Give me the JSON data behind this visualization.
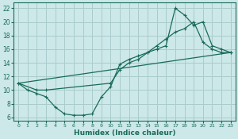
{
  "xlabel": "Humidex (Indice chaleur)",
  "bg_color": "#cce8e8",
  "grid_color": "#aacccc",
  "line_color": "#1a6b5a",
  "xlim": [
    -0.5,
    23.5
  ],
  "ylim": [
    5.5,
    22.8
  ],
  "xticks": [
    0,
    1,
    2,
    3,
    4,
    5,
    6,
    7,
    8,
    9,
    10,
    11,
    12,
    13,
    14,
    15,
    16,
    17,
    18,
    19,
    20,
    21,
    22,
    23
  ],
  "yticks": [
    6,
    8,
    10,
    12,
    14,
    16,
    18,
    20,
    22
  ],
  "series1_x": [
    0,
    1,
    2,
    3,
    4,
    5,
    6,
    7,
    8,
    9,
    10,
    11,
    12,
    13,
    14,
    15,
    16,
    17,
    18,
    19,
    20,
    21,
    22,
    23
  ],
  "series1_y": [
    11.0,
    10.0,
    9.5,
    9.0,
    7.5,
    6.5,
    6.3,
    6.3,
    6.5,
    9.0,
    10.5,
    13.8,
    14.5,
    15.0,
    15.5,
    16.5,
    17.5,
    18.5,
    19.0,
    20.0,
    17.0,
    16.0,
    15.5,
    15.5
  ],
  "series2_x": [
    0,
    2,
    3,
    10,
    11,
    12,
    13,
    14,
    15,
    16,
    17,
    18,
    19,
    20,
    21,
    22,
    23
  ],
  "series2_y": [
    11.0,
    10.0,
    10.0,
    11.0,
    13.0,
    14.0,
    14.5,
    15.5,
    16.0,
    16.5,
    22.0,
    21.0,
    19.5,
    20.0,
    16.5,
    16.0,
    15.5
  ],
  "series3_x": [
    0,
    23
  ],
  "series3_y": [
    11.0,
    15.5
  ],
  "tick_fontsize": 5.5,
  "xlabel_fontsize": 6.5,
  "linewidth": 0.9,
  "markersize": 3.5
}
